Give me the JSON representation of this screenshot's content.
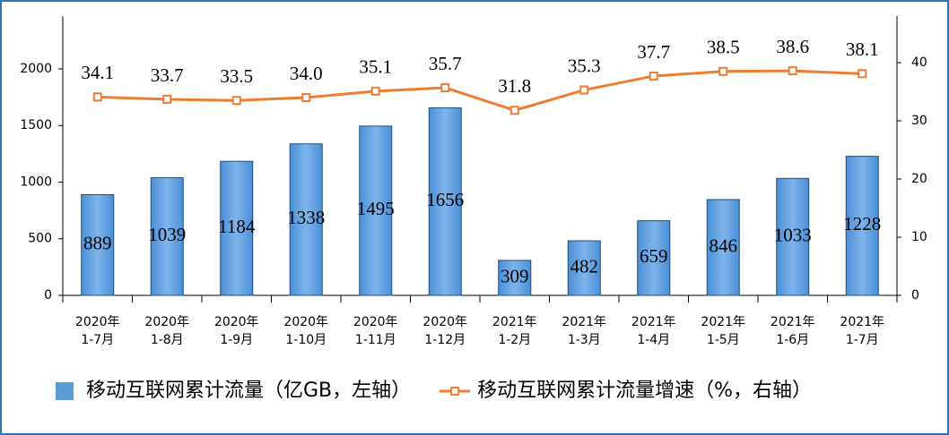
{
  "chart_data": {
    "type": "bar_line",
    "categories": [
      [
        "2020年",
        "1-7月"
      ],
      [
        "2020年",
        "1-8月"
      ],
      [
        "2020年",
        "1-9月"
      ],
      [
        "2020年",
        "1-10月"
      ],
      [
        "2020年",
        "1-11月"
      ],
      [
        "2020年",
        "1-12月"
      ],
      [
        "2021年",
        "1-2月"
      ],
      [
        "2021年",
        "1-3月"
      ],
      [
        "2021年",
        "1-4月"
      ],
      [
        "2021年",
        "1-5月"
      ],
      [
        "2021年",
        "1-6月"
      ],
      [
        "2021年",
        "1-7月"
      ]
    ],
    "series": [
      {
        "name": "移动互联网累计流量（亿GB，左轴）",
        "type": "bar",
        "color": "#5b9bd5",
        "values": [
          889,
          1039,
          1184,
          1338,
          1495,
          1656,
          309,
          482,
          659,
          846,
          1033,
          1228
        ]
      },
      {
        "name": "移动互联网累计流量增速（%，右轴）",
        "type": "line",
        "axis": "y2",
        "color": "#ed7d31",
        "values": [
          34.1,
          33.7,
          33.5,
          34.0,
          35.1,
          35.7,
          31.8,
          35.3,
          37.7,
          38.5,
          38.6,
          38.1
        ],
        "value_labels": [
          "34.1",
          "33.7",
          "33.5",
          "34.0",
          "35.1",
          "35.7",
          "31.8",
          "35.3",
          "37.7",
          "38.5",
          "38.6",
          "38.1"
        ]
      }
    ],
    "ylim": [
      0,
      2466
    ],
    "yticks": [
      0,
      500,
      1000,
      1500,
      2000
    ],
    "y2lim": [
      0,
      48
    ],
    "y2ticks": [
      0,
      10,
      20,
      30,
      40
    ]
  }
}
